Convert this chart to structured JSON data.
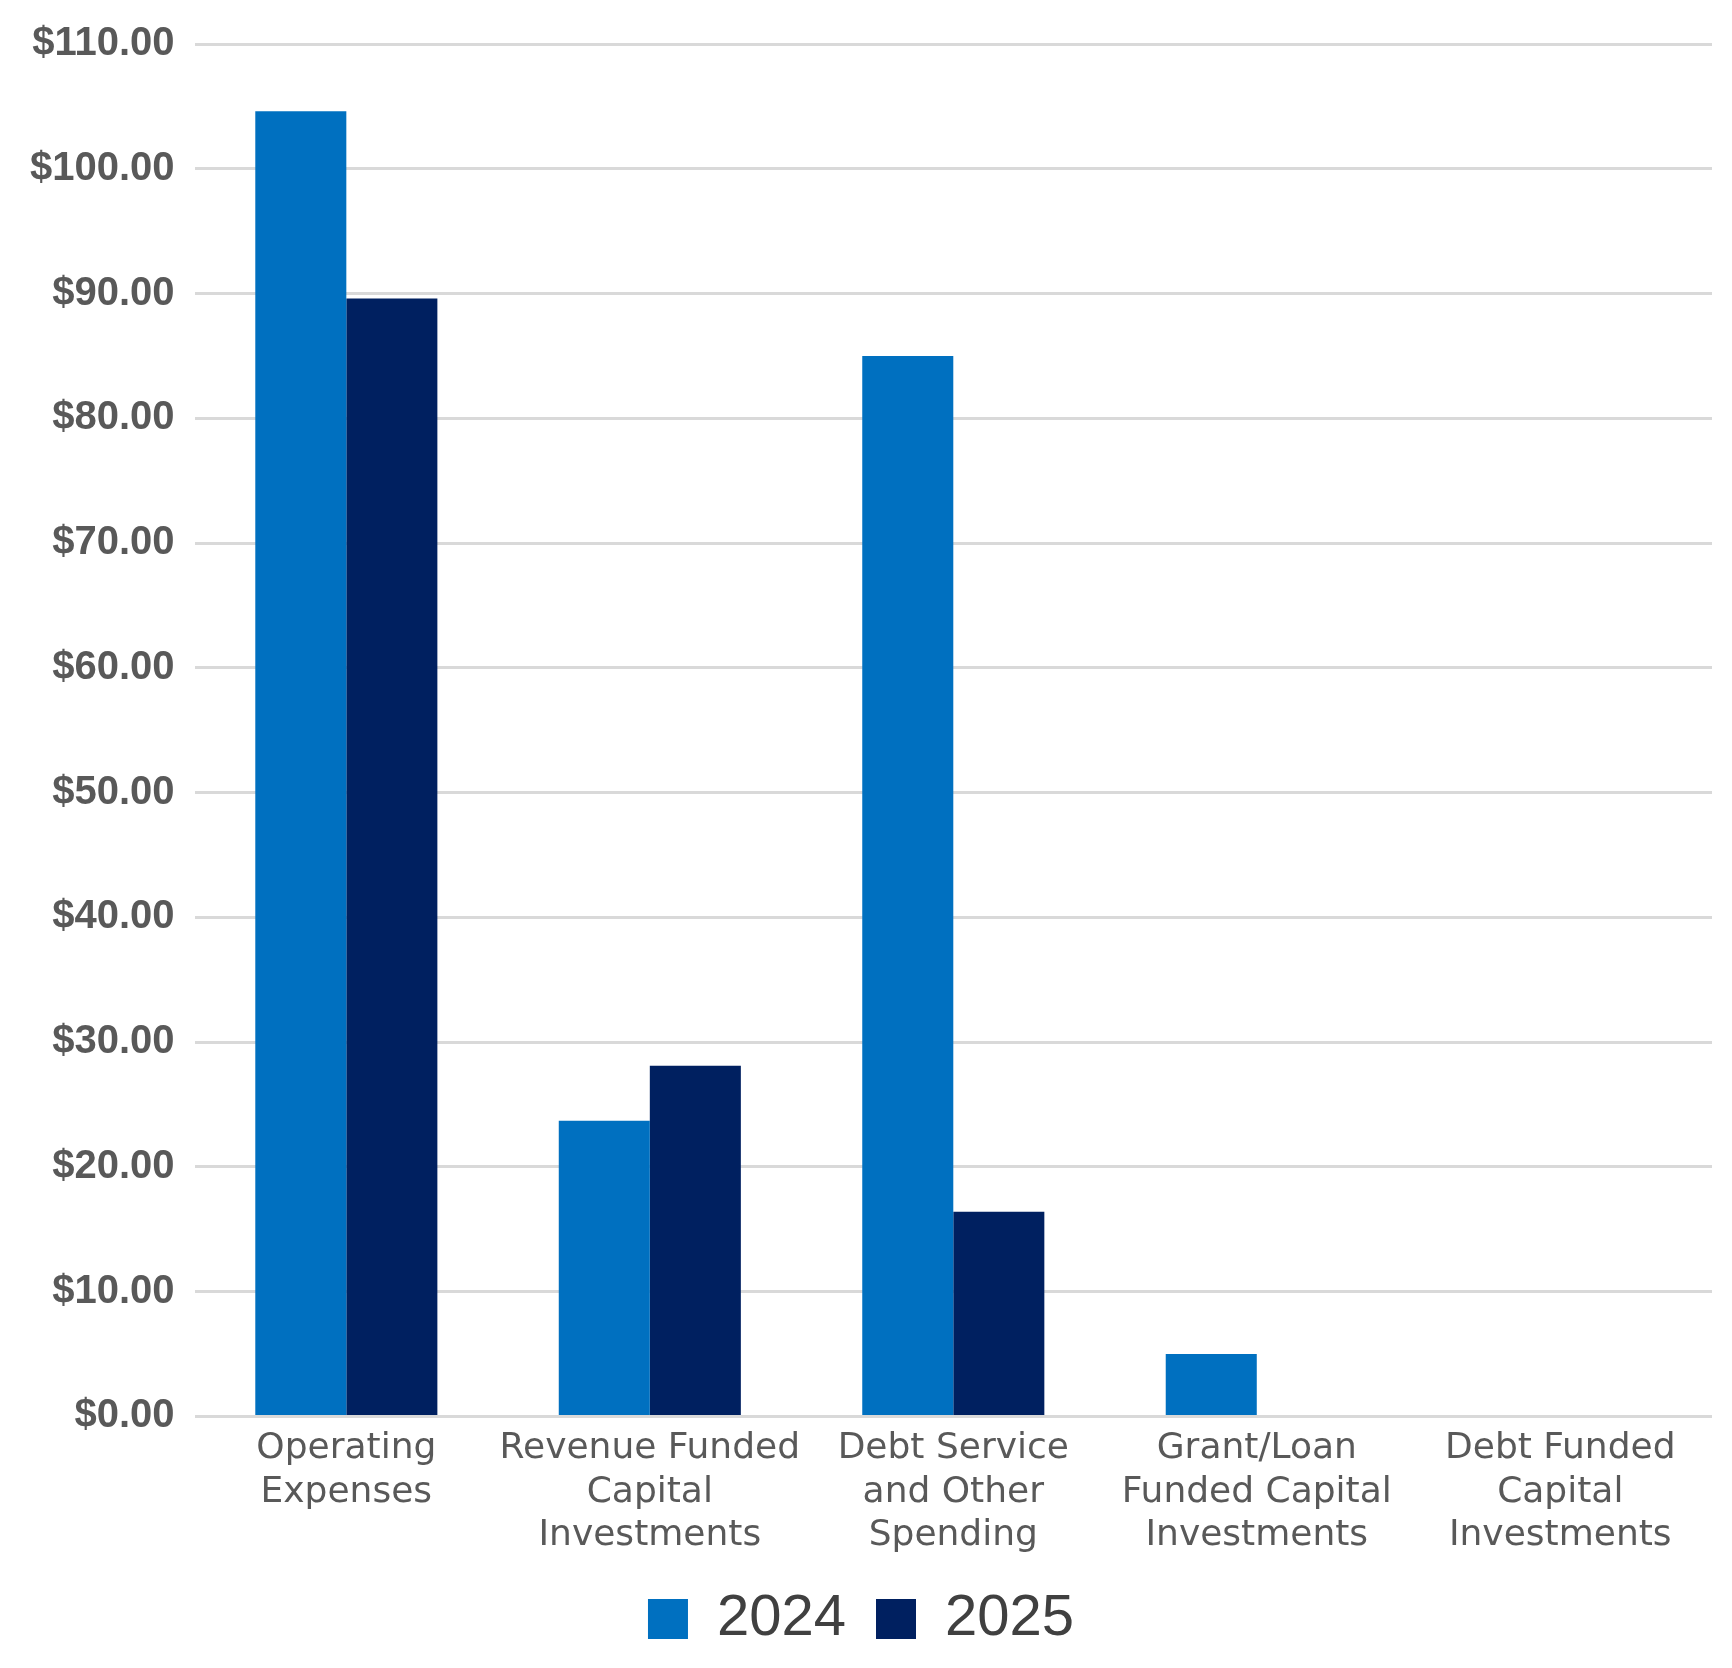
{
  "chart_data": {
    "type": "bar",
    "categories": [
      "Operating Expenses",
      "Revenue Funded Capital Investments",
      "Debt Service and Other Spending",
      "Grant/Loan Funded Capital Investments",
      "Debt Funded Capital Investments"
    ],
    "series": [
      {
        "name": "2024",
        "color": "#0070c0",
        "values": [
          104.6,
          23.7,
          85.0,
          5.0,
          0
        ]
      },
      {
        "name": "2025",
        "color": "#002060",
        "values": [
          89.6,
          28.1,
          16.4,
          0,
          0
        ]
      }
    ],
    "ylim": [
      0,
      110
    ],
    "yticks": [
      {
        "value": 0,
        "label": "$0.00"
      },
      {
        "value": 10,
        "label": "$10.00"
      },
      {
        "value": 20,
        "label": "$20.00"
      },
      {
        "value": 30,
        "label": "$30.00"
      },
      {
        "value": 40,
        "label": "$40.00"
      },
      {
        "value": 50,
        "label": "$50.00"
      },
      {
        "value": 60,
        "label": "$60.00"
      },
      {
        "value": 70,
        "label": "$70.00"
      },
      {
        "value": 80,
        "label": "$80.00"
      },
      {
        "value": 90,
        "label": "$90.00"
      },
      {
        "value": 100,
        "label": "$100.00"
      },
      {
        "value": 110,
        "label": "$110.00"
      }
    ],
    "grid": "y",
    "legend": "bottom"
  }
}
